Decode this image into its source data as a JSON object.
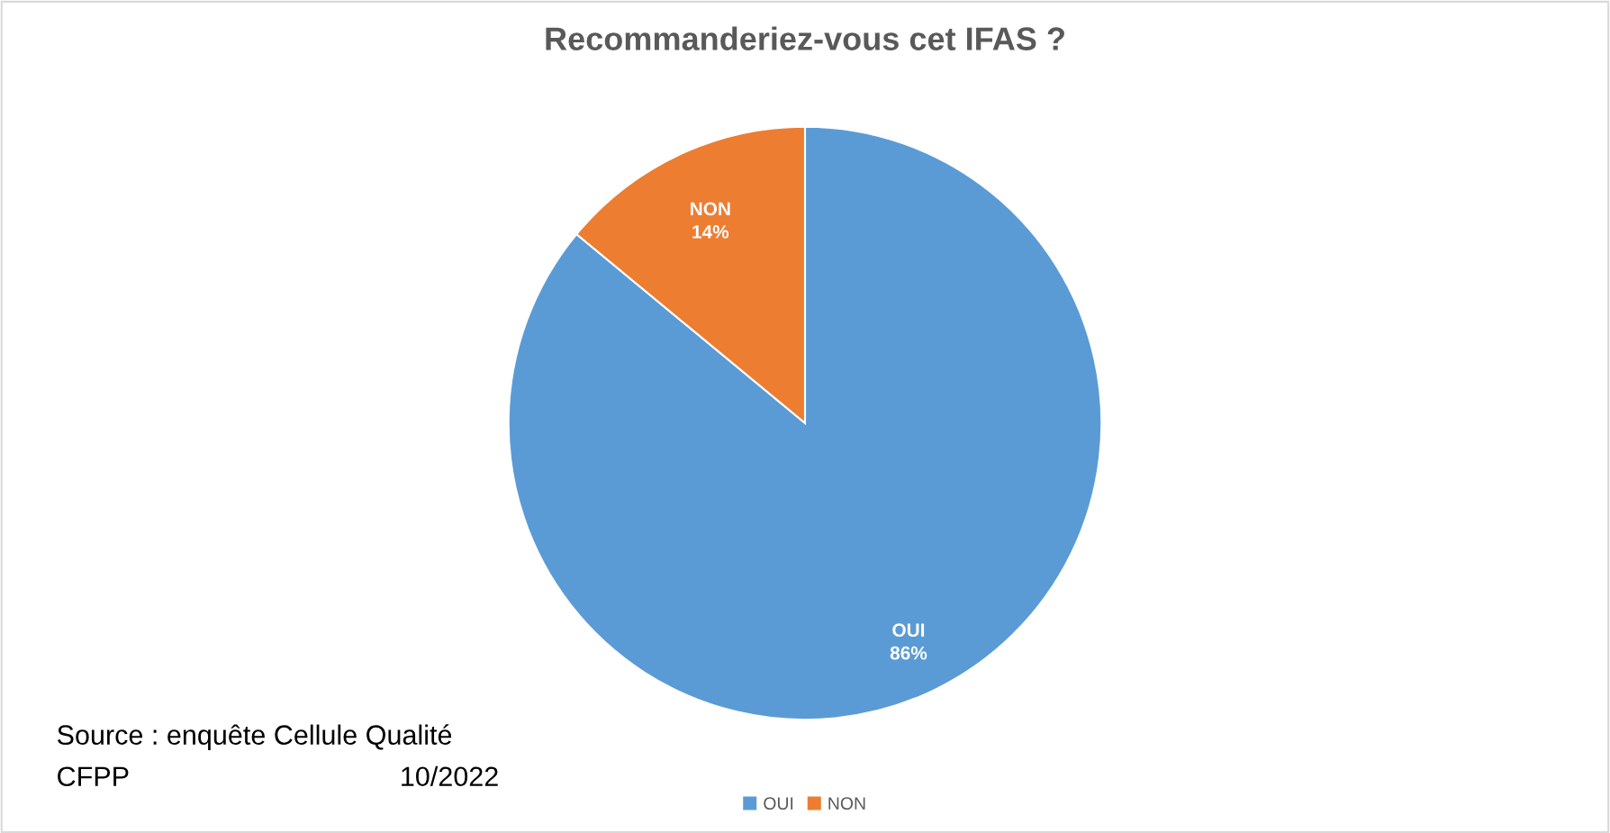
{
  "chart_data": {
    "type": "pie",
    "title": "Recommanderiez-vous cet IFAS ?",
    "categories": [
      "OUI",
      "NON"
    ],
    "values": [
      86,
      14
    ],
    "colors": [
      "#5b9bd5",
      "#ed7d31"
    ],
    "value_labels": [
      "86%",
      "14%"
    ],
    "legend": "bottom",
    "annotations": [
      "Source : enquête Cellule Qualité",
      "CFPP",
      "10/2022"
    ]
  }
}
